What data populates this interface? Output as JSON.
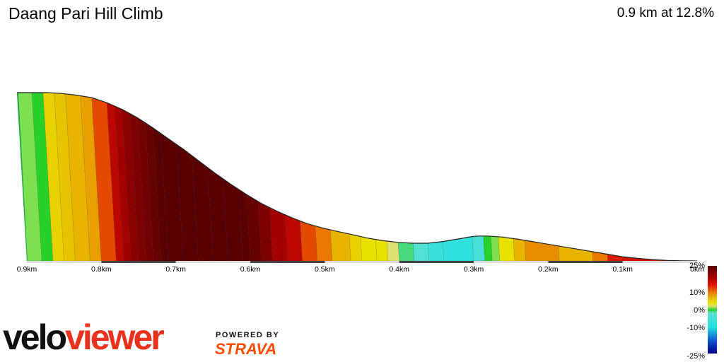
{
  "header": {
    "title": "Daang Pari Hill Climb",
    "summary": "0.9 km at 12.8%"
  },
  "brand": {
    "logo_part_a": "velo",
    "logo_part_b": "viewer",
    "powered_by": "POWERED BY",
    "strava": "STRAVA"
  },
  "chart_data": {
    "type": "area",
    "x_axis": {
      "direction": "reversed",
      "range": [
        0,
        0.9
      ],
      "unit": "km",
      "ticks": [
        {
          "value": 0.9,
          "label": "0.9km"
        },
        {
          "value": 0.8,
          "label": "0.8km"
        },
        {
          "value": 0.7,
          "label": "0.7km"
        },
        {
          "value": 0.6,
          "label": "0.6km"
        },
        {
          "value": 0.5,
          "label": "0.5km"
        },
        {
          "value": 0.4,
          "label": "0.4km"
        },
        {
          "value": 0.3,
          "label": "0.3km"
        },
        {
          "value": 0.2,
          "label": "0.2km"
        },
        {
          "value": 0.1,
          "label": "0.1km"
        },
        {
          "value": 0,
          "label": "0km"
        }
      ]
    },
    "profile": {
      "x": [
        0.9,
        0.88,
        0.86,
        0.84,
        0.82,
        0.8,
        0.78,
        0.76,
        0.74,
        0.72,
        0.7,
        0.68,
        0.66,
        0.64,
        0.62,
        0.6,
        0.58,
        0.56,
        0.54,
        0.52,
        0.5,
        0.48,
        0.46,
        0.44,
        0.42,
        0.4,
        0.38,
        0.36,
        0.34,
        0.32,
        0.3,
        0.29,
        0.28,
        0.26,
        0.24,
        0.22,
        0.2,
        0.18,
        0.16,
        0.14,
        0.12,
        0.1,
        0.08,
        0.06,
        0.04,
        0.02,
        0
      ],
      "elevation_pct": [
        100,
        100,
        100,
        99.5,
        98.5,
        97,
        94,
        90,
        85,
        79,
        72.5,
        66,
        59,
        52,
        45.5,
        39.5,
        34,
        29.5,
        25.5,
        22,
        19.5,
        17.5,
        15.5,
        13.5,
        12,
        11,
        10.5,
        10.5,
        11.5,
        13,
        14.5,
        14.8,
        14.8,
        14.2,
        13,
        11.5,
        10,
        8.5,
        7,
        5.5,
        4,
        2.5,
        1.5,
        0.8,
        0.3,
        0.1,
        0
      ]
    },
    "segments": [
      {
        "from": 0.9,
        "to": 0.88,
        "grade": 1
      },
      {
        "from": 0.88,
        "to": 0.865,
        "grade": 0
      },
      {
        "from": 0.865,
        "to": 0.85,
        "grade": 5
      },
      {
        "from": 0.85,
        "to": 0.835,
        "grade": 6
      },
      {
        "from": 0.835,
        "to": 0.815,
        "grade": 7
      },
      {
        "from": 0.815,
        "to": 0.8,
        "grade": 8
      },
      {
        "from": 0.8,
        "to": 0.78,
        "grade": 12
      },
      {
        "from": 0.78,
        "to": 0.77,
        "grade": 17
      },
      {
        "from": 0.77,
        "to": 0.76,
        "grade": 19
      },
      {
        "from": 0.76,
        "to": 0.75,
        "grade": 21
      },
      {
        "from": 0.75,
        "to": 0.74,
        "grade": 22
      },
      {
        "from": 0.74,
        "to": 0.73,
        "grade": 23
      },
      {
        "from": 0.73,
        "to": 0.72,
        "grade": 24
      },
      {
        "from": 0.72,
        "to": 0.71,
        "grade": 25
      },
      {
        "from": 0.71,
        "to": 0.69,
        "grade": 25
      },
      {
        "from": 0.69,
        "to": 0.67,
        "grade": 25
      },
      {
        "from": 0.67,
        "to": 0.65,
        "grade": 25
      },
      {
        "from": 0.65,
        "to": 0.63,
        "grade": 25
      },
      {
        "from": 0.63,
        "to": 0.61,
        "grade": 25
      },
      {
        "from": 0.61,
        "to": 0.6,
        "grade": 25
      },
      {
        "from": 0.6,
        "to": 0.585,
        "grade": 24
      },
      {
        "from": 0.585,
        "to": 0.57,
        "grade": 22
      },
      {
        "from": 0.57,
        "to": 0.55,
        "grade": 19
      },
      {
        "from": 0.55,
        "to": 0.53,
        "grade": 17
      },
      {
        "from": 0.53,
        "to": 0.51,
        "grade": 12
      },
      {
        "from": 0.51,
        "to": 0.49,
        "grade": 10
      },
      {
        "from": 0.49,
        "to": 0.465,
        "grade": 7
      },
      {
        "from": 0.465,
        "to": 0.45,
        "grade": 5
      },
      {
        "from": 0.45,
        "to": 0.43,
        "grade": 4
      },
      {
        "from": 0.43,
        "to": 0.415,
        "grade": 4
      },
      {
        "from": 0.415,
        "to": 0.4,
        "grade": 2
      },
      {
        "from": 0.4,
        "to": 0.38,
        "grade": -1
      },
      {
        "from": 0.38,
        "to": 0.36,
        "grade": -4
      },
      {
        "from": 0.36,
        "to": 0.34,
        "grade": -7
      },
      {
        "from": 0.34,
        "to": 0.3,
        "grade": -8
      },
      {
        "from": 0.3,
        "to": 0.285,
        "grade": -5
      },
      {
        "from": 0.285,
        "to": 0.275,
        "grade": 0
      },
      {
        "from": 0.275,
        "to": 0.265,
        "grade": 1
      },
      {
        "from": 0.265,
        "to": 0.245,
        "grade": 4
      },
      {
        "from": 0.245,
        "to": 0.23,
        "grade": 7
      },
      {
        "from": 0.23,
        "to": 0.185,
        "grade": 9
      },
      {
        "from": 0.185,
        "to": 0.14,
        "grade": 7
      },
      {
        "from": 0.14,
        "to": 0.12,
        "grade": 10
      },
      {
        "from": 0.12,
        "to": 0.1,
        "grade": 14
      },
      {
        "from": 0.1,
        "to": 0.055,
        "grade": 15
      },
      {
        "from": 0.055,
        "to": 0,
        "grade": 15
      }
    ],
    "legend": {
      "placement": "bottom-right",
      "labels": [
        {
          "value": 25,
          "label": "25%"
        },
        {
          "value": 10,
          "label": "10%"
        },
        {
          "value": 0,
          "label": "0%"
        },
        {
          "value": -10,
          "label": "-10%"
        },
        {
          "value": -25,
          "label": "-25%"
        }
      ],
      "stops": [
        {
          "value": 25,
          "color": "#5a0000"
        },
        {
          "value": 18,
          "color": "#b00000"
        },
        {
          "value": 14,
          "color": "#e01a00"
        },
        {
          "value": 10,
          "color": "#e87800"
        },
        {
          "value": 7,
          "color": "#e8b400"
        },
        {
          "value": 4,
          "color": "#e8e000"
        },
        {
          "value": 2,
          "color": "#e0e070"
        },
        {
          "value": 1,
          "color": "#7de050"
        },
        {
          "value": 0,
          "color": "#2ad02a"
        },
        {
          "value": -2,
          "color": "#60e0d0"
        },
        {
          "value": -10,
          "color": "#20e0e0"
        },
        {
          "value": -18,
          "color": "#1050d0"
        },
        {
          "value": -25,
          "color": "#000088"
        }
      ]
    }
  }
}
